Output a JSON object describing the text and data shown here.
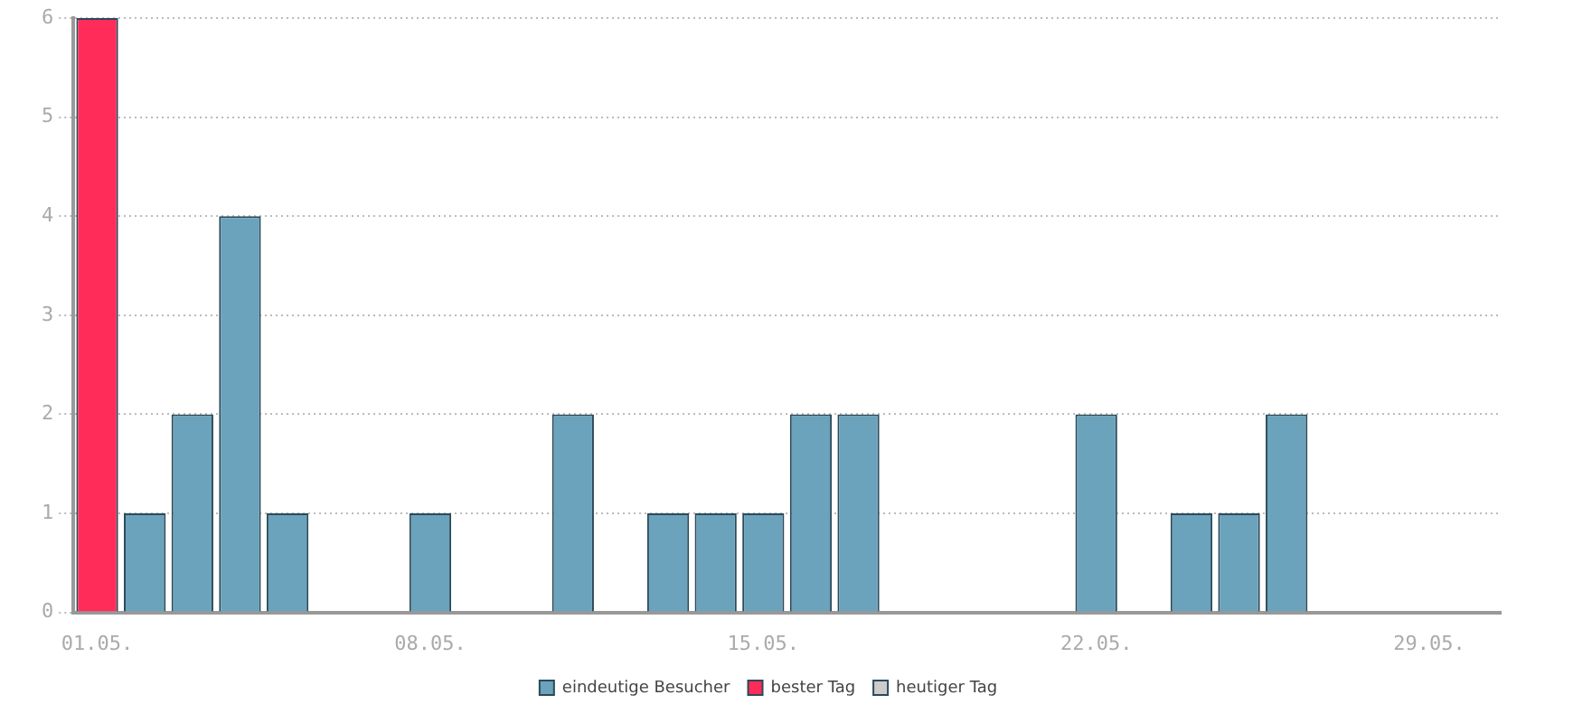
{
  "chart_data": {
    "type": "bar",
    "stacked": true,
    "categories": [
      "01.05.",
      null,
      null,
      null,
      null,
      null,
      null,
      "08.05.",
      null,
      null,
      null,
      null,
      null,
      null,
      "15.05.",
      null,
      null,
      null,
      null,
      null,
      null,
      "22.05.",
      null,
      null,
      null,
      null,
      null,
      null,
      "29.05.",
      null
    ],
    "series": [
      {
        "name": "eindeutige Besucher",
        "color": "#6aa3bb",
        "values": [
          null,
          1,
          2,
          4,
          1,
          0,
          0,
          1,
          0,
          0,
          2,
          0,
          1,
          1,
          1,
          2,
          2,
          0,
          0,
          0,
          0,
          2,
          0,
          1,
          1,
          2,
          0,
          0,
          0,
          0
        ]
      },
      {
        "name": "bester Tag",
        "color": "#ff2c5a",
        "values": [
          6,
          null,
          null,
          null,
          null,
          null,
          null,
          null,
          null,
          null,
          null,
          null,
          null,
          null,
          null,
          null,
          null,
          null,
          null,
          null,
          null,
          null,
          null,
          null,
          null,
          null,
          null,
          null,
          null,
          null
        ]
      },
      {
        "name": "heutiger Tag",
        "color": "#cccccc",
        "values": [
          null,
          null,
          null,
          null,
          null,
          null,
          null,
          null,
          null,
          null,
          null,
          null,
          null,
          null,
          null,
          null,
          null,
          null,
          null,
          null,
          null,
          null,
          null,
          null,
          null,
          null,
          null,
          null,
          null,
          null
        ]
      }
    ],
    "ylim": [
      0,
      6
    ],
    "yticks": [
      0,
      1,
      2,
      3,
      4,
      5,
      6
    ],
    "grid": "y",
    "legend": "bottom"
  }
}
